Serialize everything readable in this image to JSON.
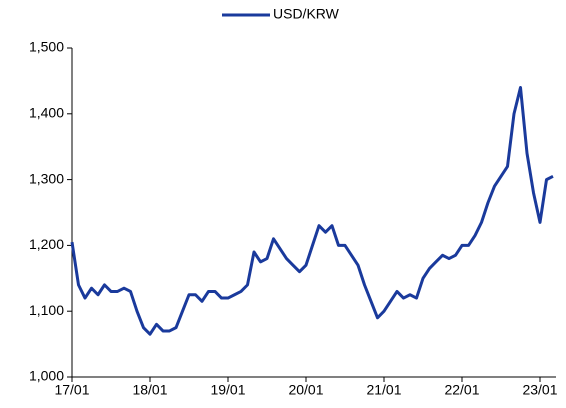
{
  "chart_data": {
    "type": "line",
    "categories": [
      "17/01",
      null,
      null,
      null,
      null,
      null,
      null,
      null,
      null,
      null,
      null,
      null,
      "18/01",
      null,
      null,
      null,
      null,
      null,
      null,
      null,
      null,
      null,
      null,
      null,
      "19/01",
      null,
      null,
      null,
      null,
      null,
      null,
      null,
      null,
      null,
      null,
      null,
      "20/01",
      null,
      null,
      null,
      null,
      null,
      null,
      null,
      null,
      null,
      null,
      null,
      "21/01",
      null,
      null,
      null,
      null,
      null,
      null,
      null,
      null,
      null,
      null,
      null,
      "22/01",
      null,
      null,
      null,
      null,
      null,
      null,
      null,
      null,
      null,
      null,
      null,
      "23/01",
      null,
      null
    ],
    "series": [
      {
        "name": "USD/KRW",
        "color": "#1a3a9c",
        "values": [
          1205,
          1140,
          1120,
          1135,
          1125,
          1140,
          1130,
          1130,
          1135,
          1130,
          1100,
          1075,
          1065,
          1080,
          1070,
          1070,
          1075,
          1100,
          1125,
          1125,
          1115,
          1130,
          1130,
          1120,
          1120,
          1125,
          1130,
          1140,
          1190,
          1175,
          1180,
          1210,
          1195,
          1180,
          1170,
          1160,
          1170,
          1200,
          1230,
          1220,
          1230,
          1200,
          1200,
          1185,
          1170,
          1140,
          1115,
          1090,
          1100,
          1115,
          1130,
          1120,
          1125,
          1120,
          1150,
          1165,
          1175,
          1185,
          1180,
          1185,
          1200,
          1200,
          1215,
          1235,
          1265,
          1290,
          1305,
          1320,
          1400,
          1440,
          1340,
          1280,
          1235,
          1300,
          1305
        ]
      }
    ],
    "ylim": [
      1000,
      1500
    ],
    "yticks": [
      {
        "value": 1000,
        "label": "1,000"
      },
      {
        "value": 1100,
        "label": "1,100"
      },
      {
        "value": 1200,
        "label": "1,200"
      },
      {
        "value": 1300,
        "label": "1,300"
      },
      {
        "value": 1400,
        "label": "1,400"
      },
      {
        "value": 1500,
        "label": "1,500"
      }
    ],
    "legend": "top"
  }
}
